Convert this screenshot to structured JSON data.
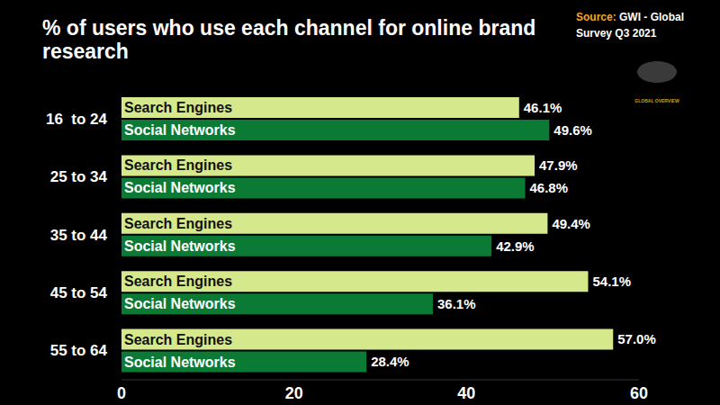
{
  "chart_data": {
    "type": "bar",
    "orientation": "horizontal",
    "title": "% of users who use each channel for online brand research",
    "source_label": "Source:",
    "source": "GWI - Global Survey Q3 2021",
    "logo_text": "GLOBAL OVERVIEW",
    "categories": [
      "16  to 24",
      "25 to 34",
      "35 to 44",
      "45 to 54",
      "55 to 64"
    ],
    "series": [
      {
        "name": "Search Engines",
        "color": "#d5e98c",
        "values": [
          46.1,
          47.9,
          49.4,
          54.1,
          57.0
        ],
        "value_labels": [
          "46.1%",
          "47.9%",
          "49.4%",
          "54.1%",
          "57.0%"
        ]
      },
      {
        "name": "Social Networks",
        "color": "#0b7a35",
        "values": [
          49.6,
          46.8,
          42.9,
          36.1,
          28.4
        ],
        "value_labels": [
          "49.6%",
          "46.8%",
          "42.9%",
          "36.1%",
          "28.4%"
        ]
      }
    ],
    "xlim": [
      0,
      60
    ],
    "xticks": [
      0,
      20,
      40,
      60
    ],
    "grid": false,
    "data_labels": true
  }
}
